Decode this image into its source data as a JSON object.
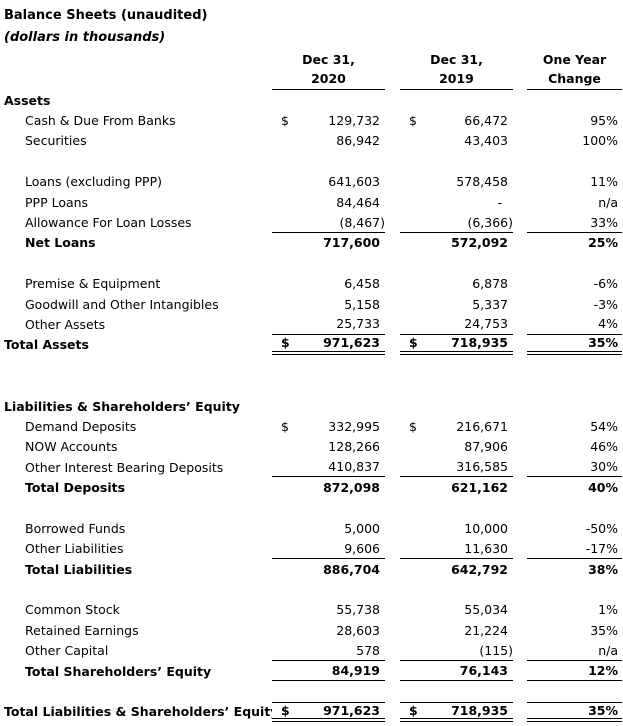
{
  "header": {
    "title": "Balance Sheets (unaudited)",
    "subtitle": "(dollars in thousands)"
  },
  "columns": [
    {
      "line1": "Dec 31,",
      "line2": "2020"
    },
    {
      "line1": "Dec 31,",
      "line2": "2019"
    },
    {
      "line1": "One Year",
      "line2": "Change"
    }
  ],
  "colors": {
    "text": "#000000",
    "background": "#ffffff"
  },
  "rows": [
    {
      "label": "Assets",
      "section": true
    },
    {
      "label": "Cash & Due From Banks",
      "indent": true,
      "d2020": "$",
      "v2020": "129,732",
      "d2019": "$",
      "v2019": "66,472",
      "change": "95%"
    },
    {
      "label": "Securities",
      "indent": true,
      "v2020": "86,942",
      "v2019": "43,403",
      "change": "100%"
    },
    {
      "spacer": true
    },
    {
      "label": "Loans (excluding PPP)",
      "indent": true,
      "v2020": "641,603",
      "v2019": "578,458",
      "change": "11%"
    },
    {
      "label": "PPP Loans",
      "indent": true,
      "v2020": "84,464",
      "v2019": "-",
      "change": "n/a"
    },
    {
      "label": "Allowance For Loan Losses",
      "indent": true,
      "v2020": "(8,467)",
      "v2019": "(6,366)",
      "change": "33%",
      "rule": "single"
    },
    {
      "label": "Net Loans",
      "indent": true,
      "bold": true,
      "v2020": "717,600",
      "v2019": "572,092",
      "change": "25%"
    },
    {
      "spacer": true
    },
    {
      "label": "Premise & Equipment",
      "indent": true,
      "v2020": "6,458",
      "v2019": "6,878",
      "change": "-6%"
    },
    {
      "label": "Goodwill and Other Intangibles",
      "indent": true,
      "v2020": "5,158",
      "v2019": "5,337",
      "change": "-3%"
    },
    {
      "label": "Other Assets",
      "indent": true,
      "v2020": "25,733",
      "v2019": "24,753",
      "change": "4%",
      "rule": "single"
    },
    {
      "label": "Total Assets",
      "bold": true,
      "d2020": "$",
      "v2020": "971,623",
      "d2019": "$",
      "v2019": "718,935",
      "change": "35%",
      "rule": "double"
    },
    {
      "spacer": true
    },
    {
      "spacer": true
    },
    {
      "label": "Liabilities & Shareholders’ Equity",
      "section": true
    },
    {
      "label": "Demand Deposits",
      "indent": true,
      "d2020": "$",
      "v2020": "332,995",
      "d2019": "$",
      "v2019": "216,671",
      "change": "54%"
    },
    {
      "label": "NOW Accounts",
      "indent": true,
      "v2020": "128,266",
      "v2019": "87,906",
      "change": "46%"
    },
    {
      "label": "Other Interest Bearing Deposits",
      "indent": true,
      "v2020": "410,837",
      "v2019": "316,585",
      "change": "30%",
      "rule": "single"
    },
    {
      "label": "Total Deposits",
      "indent": true,
      "bold": true,
      "v2020": "872,098",
      "v2019": "621,162",
      "change": "40%"
    },
    {
      "spacer": true
    },
    {
      "label": "Borrowed Funds",
      "indent": true,
      "v2020": "5,000",
      "v2019": "10,000",
      "change": "-50%"
    },
    {
      "label": "Other Liabilities",
      "indent": true,
      "v2020": "9,606",
      "v2019": "11,630",
      "change": "-17%",
      "rule": "single"
    },
    {
      "label": "Total Liabilities",
      "indent": true,
      "bold": true,
      "v2020": "886,704",
      "v2019": "642,792",
      "change": "38%"
    },
    {
      "spacer": true
    },
    {
      "label": "Common Stock",
      "indent": true,
      "v2020": "55,738",
      "v2019": "55,034",
      "change": "1%"
    },
    {
      "label": "Retained Earnings",
      "indent": true,
      "v2020": "28,603",
      "v2019": "21,224",
      "change": "35%"
    },
    {
      "label": "Other Capital",
      "indent": true,
      "v2020": "578",
      "v2019": "(115)",
      "change": "n/a",
      "rule": "single"
    },
    {
      "label": "Total Shareholders’ Equity",
      "indent": true,
      "bold": true,
      "v2020": "84,919",
      "v2019": "76,143",
      "change": "12%",
      "rule": "single"
    },
    {
      "spacer": true
    },
    {
      "label": "Total Liabilities & Shareholders’ Equity",
      "bold": true,
      "d2020": "$",
      "v2020": "971,623",
      "d2019": "$",
      "v2019": "718,935",
      "change": "35%",
      "rule": "double",
      "topRule": true
    }
  ]
}
